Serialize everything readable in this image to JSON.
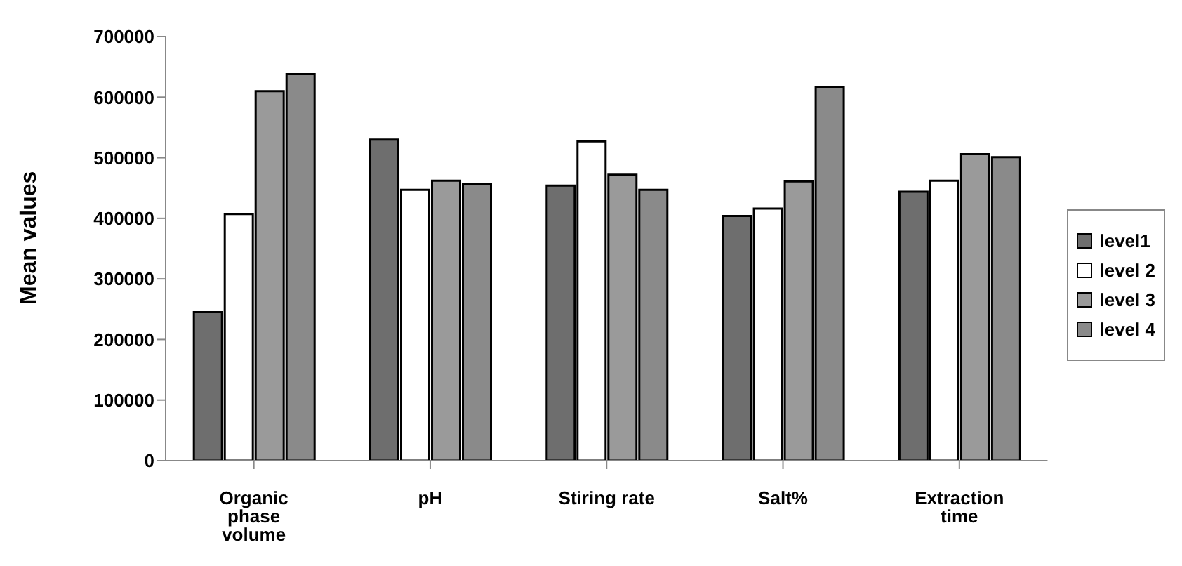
{
  "chart_data": {
    "type": "bar",
    "ylabel": "Mean values",
    "categories": [
      "Organic phase volume",
      "pH",
      "Stiring rate",
      "Salt%",
      "Extraction time"
    ],
    "series": [
      {
        "name": "level1",
        "color": "#6e6e6e",
        "values": [
          245000,
          530000,
          454000,
          404000,
          444000
        ]
      },
      {
        "name": "level 2",
        "color": "#ffffff",
        "values": [
          407000,
          447000,
          527000,
          416000,
          462000
        ]
      },
      {
        "name": "level 3",
        "color": "#9a9a9a",
        "values": [
          610000,
          462000,
          472000,
          461000,
          506000
        ]
      },
      {
        "name": "level 4",
        "color": "#8a8a8a",
        "values": [
          638000,
          457000,
          447000,
          616000,
          501000
        ]
      }
    ],
    "ylim": [
      0,
      700000
    ],
    "yticks": [
      0,
      100000,
      200000,
      300000,
      400000,
      500000,
      600000,
      700000
    ],
    "grid": false,
    "legend": "right"
  }
}
